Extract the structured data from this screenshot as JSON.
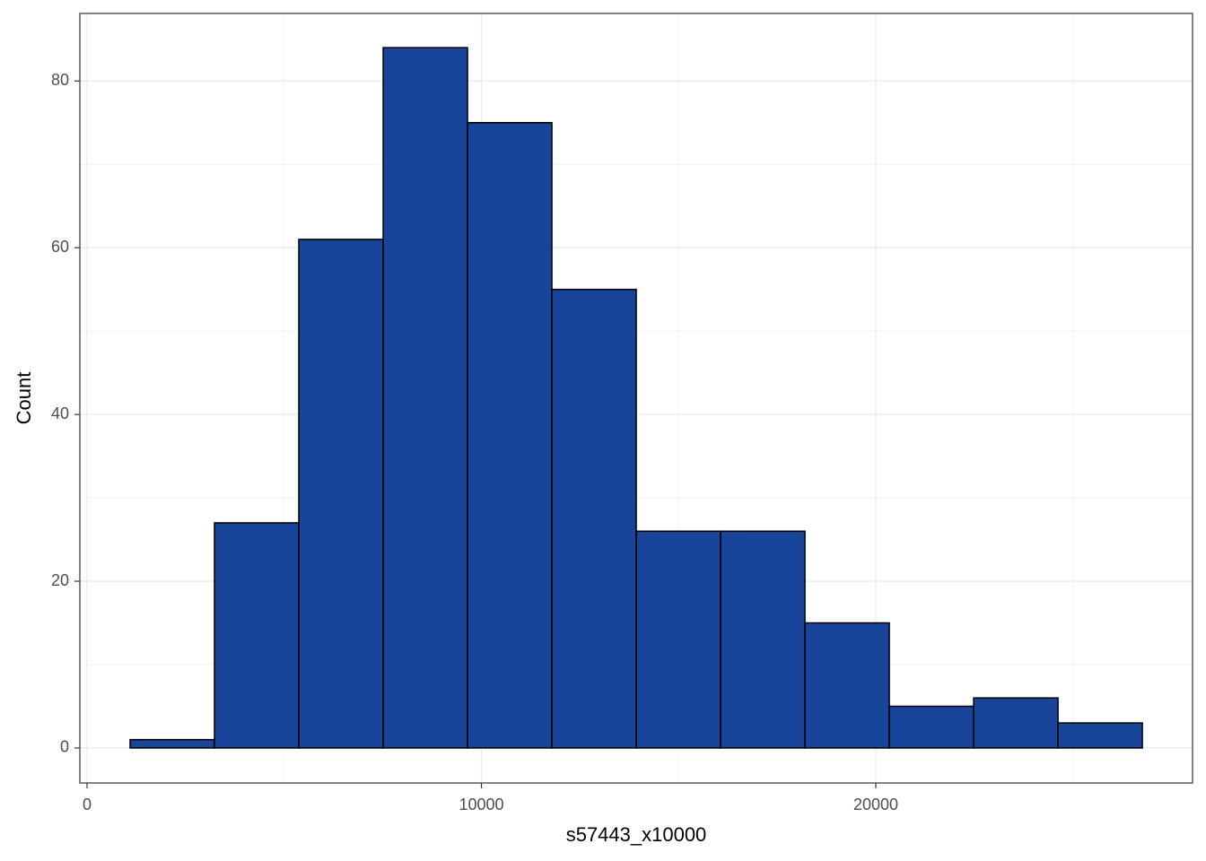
{
  "chart_data": {
    "type": "histogram",
    "x_label": "s57443_x10000",
    "y_label": "Count",
    "bins": [
      1092,
      3231,
      5370,
      7509,
      9648,
      11787,
      13926,
      16065,
      18204,
      20343,
      22482,
      24621,
      26760
    ],
    "values": [
      1,
      27,
      61,
      84,
      75,
      55,
      26,
      26,
      15,
      5,
      6,
      3
    ],
    "color": "#18449a",
    "edge_color": "#000000",
    "xlim": [
      -182,
      28032
    ],
    "ylim": [
      -4.2,
      88.1
    ],
    "xticks": [
      0,
      10000,
      20000
    ],
    "yticks": [
      0,
      20,
      40,
      60,
      80
    ],
    "grid": true
  }
}
